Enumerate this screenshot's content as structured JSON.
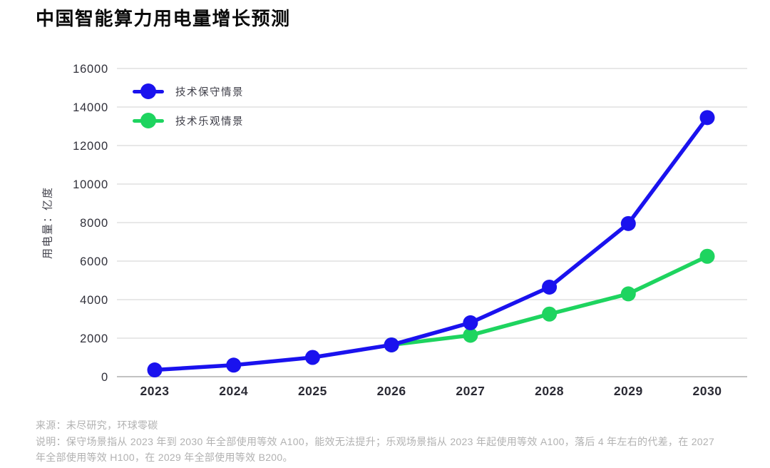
{
  "page": {
    "background": "#ffffff"
  },
  "chart_data": {
    "type": "line",
    "title": "中国智能算力用电量增长预测",
    "ylabel": "用电量：亿度",
    "xlabel": "",
    "categories": [
      "2023",
      "2024",
      "2025",
      "2026",
      "2027",
      "2028",
      "2029",
      "2030"
    ],
    "ylim": [
      0,
      16000
    ],
    "yticks": [
      0,
      2000,
      4000,
      6000,
      8000,
      10000,
      12000,
      14000,
      16000
    ],
    "grid": "horizontal-gridlines-only",
    "legend_position": "inside-top-left",
    "series": [
      {
        "name": "技术保守情景",
        "color": "#1a12ee",
        "values": [
          350,
          600,
          1000,
          1650,
          2800,
          4650,
          7950,
          13450
        ]
      },
      {
        "name": "技术乐观情景",
        "color": "#1ed45f",
        "values": [
          null,
          null,
          null,
          1650,
          2150,
          3250,
          4300,
          6250
        ]
      }
    ]
  },
  "footer": {
    "source": "来源：未尽研究，环球零碳",
    "note_lines": [
      "说明：保守场景指从 2023 年到 2030 年全部使用等效 A100，能效无法提升；乐观场景指从 2023 年起使用等效 A100，落后 4 年左右的代差，在 2027",
      "年全部使用等效 H100，在 2029 年全部使用等效 B200。"
    ]
  }
}
